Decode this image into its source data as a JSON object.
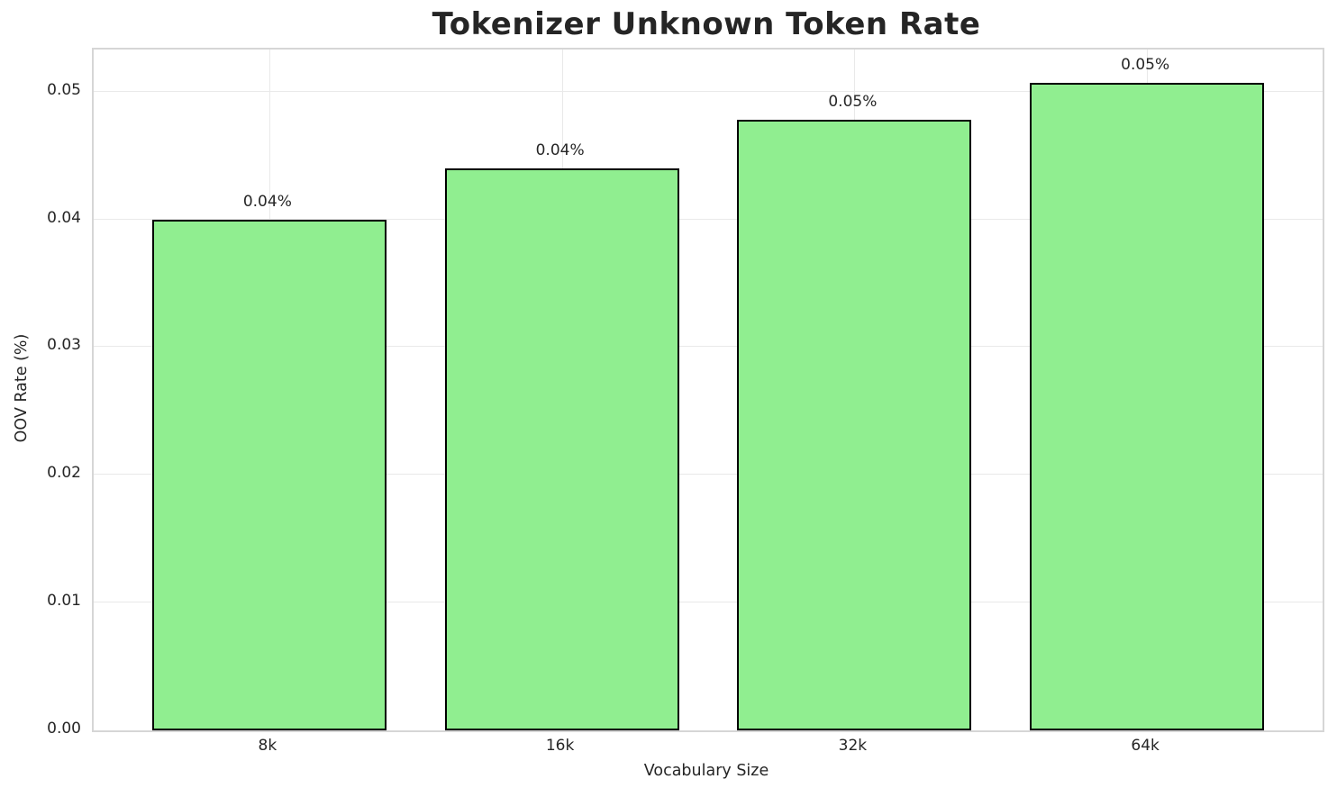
{
  "chart_data": {
    "type": "bar",
    "title": "Tokenizer Unknown Token Rate",
    "xlabel": "Vocabulary Size",
    "ylabel": "OOV Rate (%)",
    "categories": [
      "8k",
      "16k",
      "32k",
      "64k"
    ],
    "values": [
      0.04,
      0.044,
      0.0478,
      0.0507
    ],
    "bar_labels": [
      "0.04%",
      "0.04%",
      "0.05%",
      "0.05%"
    ],
    "yticks": [
      0.0,
      0.01,
      0.02,
      0.03,
      0.04,
      0.05
    ],
    "ytick_labels": [
      "0.00",
      "0.01",
      "0.02",
      "0.03",
      "0.04",
      "0.05"
    ],
    "ylim": [
      0,
      0.0533
    ],
    "grid": true,
    "legend_position": "none",
    "colors": {
      "bar_fill": "#90EE90",
      "bar_edge": "#000000",
      "grid": "#e9e9e9",
      "spine": "#d6d6d6",
      "text": "#262626"
    }
  }
}
